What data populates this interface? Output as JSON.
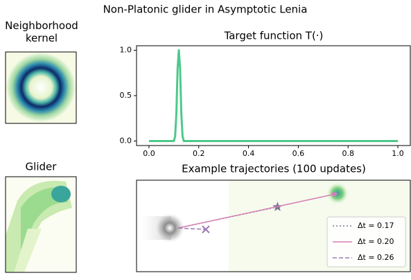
{
  "title": "Non-Platonic glider in Asymptotic Lenia",
  "chart_data": [
    {
      "type": "image",
      "title": "Neighborhood kernel"
    },
    {
      "type": "line",
      "title": "Target function T(·)",
      "x": [
        0.0,
        0.1,
        0.105,
        0.11,
        0.115,
        0.12,
        0.125,
        0.13,
        0.135,
        0.14,
        1.0
      ],
      "values": [
        0.0,
        0.0,
        0.05,
        0.3,
        0.8,
        1.0,
        0.8,
        0.3,
        0.05,
        0.0,
        0.0
      ],
      "color": "#4cc98a",
      "xlim": [
        -0.05,
        1.05
      ],
      "ylim": [
        -0.05,
        1.05
      ],
      "xticks": [
        {
          "value": 0,
          "label": "0.0"
        },
        {
          "value": 0.2,
          "label": "0.2"
        },
        {
          "value": 0.4,
          "label": "0.4"
        },
        {
          "value": 0.6,
          "label": "0.6"
        },
        {
          "value": 0.8,
          "label": "0.8"
        },
        {
          "value": 1,
          "label": "1.0"
        }
      ],
      "yticks": [
        {
          "value": 0,
          "label": "0.0"
        },
        {
          "value": 0.5,
          "label": "0.5"
        },
        {
          "value": 1,
          "label": "1.0"
        }
      ]
    },
    {
      "type": "image",
      "title": "Glider"
    },
    {
      "type": "trajectory",
      "title": "Example trajectories (100 updates)",
      "xlim": [
        0,
        100
      ],
      "ylim": [
        0,
        100
      ],
      "legend": "lower right",
      "series": [
        {
          "name": "Δt = 0.17",
          "color": "#7b7493",
          "dash": "dotted",
          "marker": "star",
          "x": [
            15.2,
            51.5
          ],
          "values": [
            47.7,
            70.8
          ]
        },
        {
          "name": "Δt = 0.20",
          "color": "#d67fb3",
          "dash": "solid",
          "marker": "arrow",
          "x": [
            15.2,
            73.4
          ],
          "values": [
            47.7,
            85.4
          ]
        },
        {
          "name": "Δt = 0.26",
          "color": "#9b7ab4",
          "dash": "dashed",
          "marker": "x",
          "x": [
            15.2,
            25.3
          ],
          "values": [
            47.7,
            46.2
          ]
        }
      ]
    }
  ]
}
